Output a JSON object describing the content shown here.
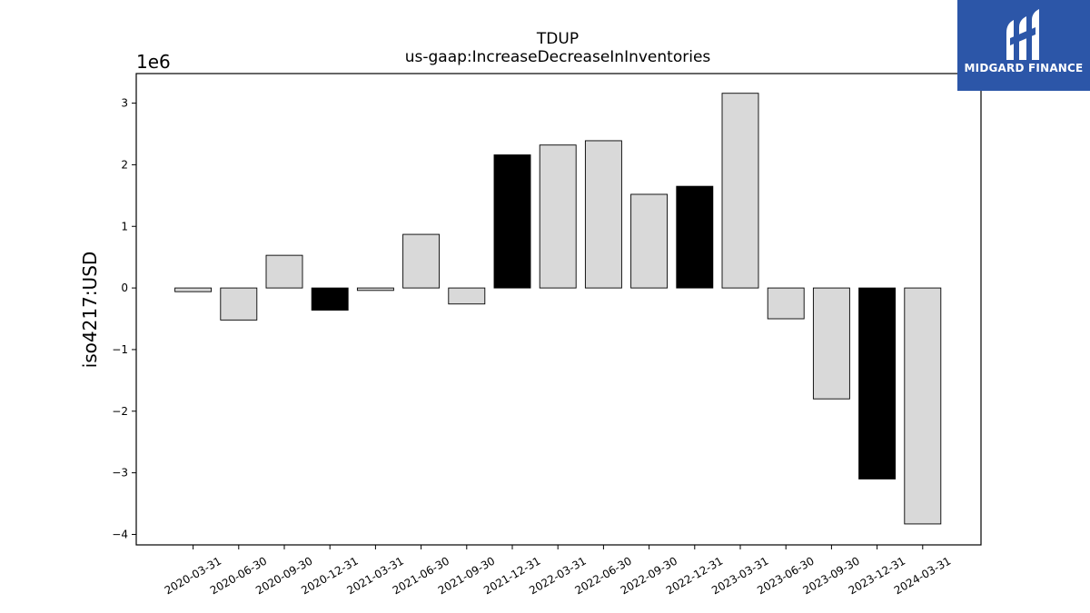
{
  "chart_data": {
    "type": "bar",
    "title": "TDUP",
    "subtitle": "us-gaap:IncreaseDecreaseInInventories",
    "ylabel": "iso4217:USD",
    "offset_label": "1e6",
    "ylim": [
      -4.17,
      3.48
    ],
    "yticks": [
      -4,
      -3,
      -2,
      -1,
      0,
      1,
      2,
      3
    ],
    "ytick_labels": [
      "−4",
      "−3",
      "−2",
      "−1",
      "0",
      "1",
      "2",
      "3"
    ],
    "scale": 1000000,
    "categories": [
      "2020-03-31",
      "2020-06-30",
      "2020-09-30",
      "2020-12-31",
      "2021-03-31",
      "2021-06-30",
      "2021-09-30",
      "2021-12-31",
      "2022-03-31",
      "2022-06-30",
      "2022-09-30",
      "2022-12-31",
      "2023-03-31",
      "2023-06-30",
      "2023-09-30",
      "2023-12-31",
      "2024-03-31"
    ],
    "values": [
      -0.06,
      -0.52,
      0.53,
      -0.36,
      -0.04,
      0.87,
      -0.26,
      2.16,
      2.32,
      2.39,
      1.52,
      1.65,
      3.16,
      -0.5,
      -1.8,
      -3.1,
      -3.83
    ],
    "highlight": [
      false,
      false,
      false,
      true,
      false,
      false,
      false,
      true,
      false,
      false,
      false,
      true,
      false,
      false,
      false,
      true,
      false
    ],
    "colors": {
      "normal": "#d9d9d9",
      "highlight": "#000000",
      "edge": "#000000"
    },
    "grid": false
  },
  "logo": {
    "text": "MIDGARD FINANCE",
    "background": "#2c56a8"
  }
}
